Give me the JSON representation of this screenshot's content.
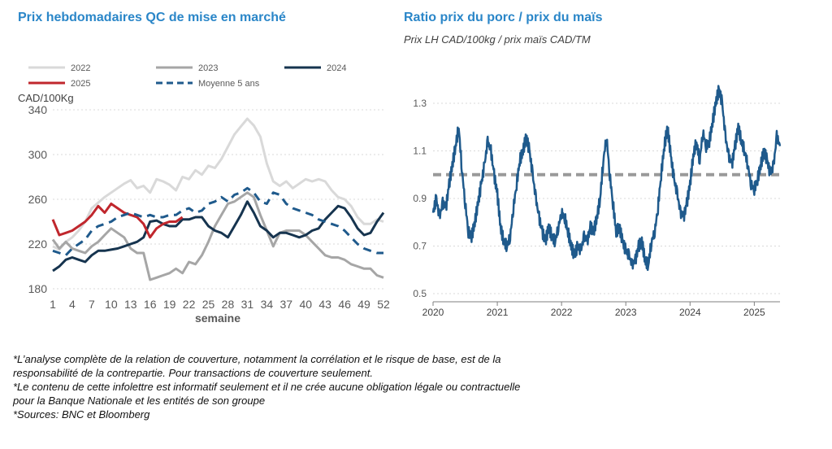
{
  "left_title": "Prix hebdomadaires QC de mise en marché",
  "right_title": "Ratio prix du porc / prix du maïs",
  "right_subtitle": "Prix LH CAD/100kg / prix maïs CAD/TM",
  "footnotes": [
    "*L’analyse complète de la relation de couverture, notamment la corrélation et le risque de base, est de la",
    "responsabilité de la contrepartie. Pour transactions de couverture seulement.",
    "*Le contenu de cette infolettre est informatif seulement et il ne crée aucune obligation légale ou contractuelle",
    "pour la Banque Nationale et les entités de son groupe",
    "*Sources: BNC et Bloomberg"
  ],
  "chart_data": [
    {
      "type": "line",
      "ylabel": "CAD/100Kg",
      "xlabel": "semaine",
      "ylim": [
        180,
        340
      ],
      "xlim": [
        1,
        52
      ],
      "yticks": [
        180,
        220,
        260,
        300,
        340
      ],
      "xticks": [
        1,
        4,
        7,
        10,
        13,
        16,
        19,
        22,
        25,
        28,
        31,
        34,
        37,
        40,
        43,
        46,
        49,
        52
      ],
      "grid": true,
      "legend_position": "top",
      "series": [
        {
          "name": "2022",
          "color": "#d9d9d9",
          "dash": false,
          "width": 3,
          "x": [
            1,
            2,
            3,
            4,
            5,
            6,
            7,
            8,
            9,
            10,
            11,
            12,
            13,
            14,
            15,
            16,
            17,
            18,
            19,
            20,
            21,
            22,
            23,
            24,
            25,
            26,
            27,
            28,
            29,
            30,
            31,
            32,
            33,
            34,
            35,
            36,
            37,
            38,
            39,
            40,
            41,
            42,
            43,
            44,
            45,
            46,
            47,
            48,
            49,
            50,
            51,
            52
          ],
          "y": [
            218,
            215,
            222,
            226,
            232,
            240,
            252,
            257,
            262,
            266,
            270,
            274,
            277,
            270,
            272,
            266,
            278,
            276,
            273,
            268,
            280,
            278,
            286,
            282,
            290,
            288,
            296,
            307,
            318,
            325,
            332,
            326,
            316,
            292,
            276,
            272,
            276,
            270,
            274,
            278,
            276,
            278,
            276,
            268,
            262,
            260,
            254,
            244,
            238,
            238,
            242,
            240
          ]
        },
        {
          "name": "2023",
          "color": "#a6a6a6",
          "dash": false,
          "width": 3,
          "x": [
            1,
            2,
            3,
            4,
            5,
            6,
            7,
            8,
            9,
            10,
            11,
            12,
            13,
            14,
            15,
            16,
            17,
            18,
            19,
            20,
            21,
            22,
            23,
            24,
            25,
            26,
            27,
            28,
            29,
            30,
            31,
            32,
            33,
            34,
            35,
            36,
            37,
            38,
            39,
            40,
            41,
            42,
            43,
            44,
            45,
            46,
            47,
            48,
            49,
            50,
            51,
            52
          ],
          "y": [
            224,
            216,
            222,
            216,
            214,
            212,
            218,
            222,
            228,
            234,
            230,
            226,
            216,
            212,
            212,
            188,
            190,
            192,
            194,
            198,
            194,
            204,
            202,
            210,
            222,
            236,
            246,
            256,
            258,
            262,
            266,
            262,
            246,
            232,
            218,
            230,
            232,
            232,
            232,
            228,
            222,
            216,
            210,
            208,
            208,
            206,
            202,
            200,
            198,
            198,
            192,
            190
          ]
        },
        {
          "name": "2024",
          "color": "#16344f",
          "dash": false,
          "width": 3,
          "x": [
            1,
            2,
            3,
            4,
            5,
            6,
            7,
            8,
            9,
            10,
            11,
            12,
            13,
            14,
            15,
            16,
            17,
            18,
            19,
            20,
            21,
            22,
            23,
            24,
            25,
            26,
            27,
            28,
            29,
            30,
            31,
            32,
            33,
            34,
            35,
            36,
            37,
            38,
            39,
            40,
            41,
            42,
            43,
            44,
            45,
            46,
            47,
            48,
            49,
            50,
            51,
            52
          ],
          "y": [
            196,
            200,
            206,
            208,
            206,
            204,
            210,
            214,
            214,
            215,
            216,
            218,
            220,
            222,
            226,
            240,
            241,
            238,
            236,
            236,
            242,
            242,
            244,
            244,
            236,
            232,
            230,
            226,
            236,
            246,
            258,
            248,
            236,
            232,
            226,
            230,
            230,
            228,
            226,
            228,
            232,
            234,
            242,
            248,
            254,
            252,
            244,
            234,
            228,
            230,
            240,
            248
          ]
        },
        {
          "name": "2025",
          "color": "#c0272d",
          "dash": false,
          "width": 3,
          "x": [
            1,
            2,
            3,
            4,
            5,
            6,
            7,
            8,
            9,
            10,
            11,
            12,
            13,
            14,
            15,
            16,
            17,
            18,
            19,
            20,
            21
          ],
          "y": [
            242,
            228,
            230,
            232,
            236,
            240,
            246,
            254,
            248,
            256,
            252,
            248,
            246,
            244,
            238,
            226,
            234,
            238,
            240,
            240,
            244
          ]
        },
        {
          "name": "Moyenne 5 ans",
          "color": "#1f5a8c",
          "dash": true,
          "width": 3,
          "x": [
            1,
            2,
            3,
            4,
            5,
            6,
            7,
            8,
            9,
            10,
            11,
            12,
            13,
            14,
            15,
            16,
            17,
            18,
            19,
            20,
            21,
            22,
            23,
            24,
            25,
            26,
            27,
            28,
            29,
            30,
            31,
            32,
            33,
            34,
            35,
            36,
            37,
            38,
            39,
            40,
            41,
            42,
            43,
            44,
            45,
            46,
            47,
            48,
            49,
            50,
            51,
            52
          ],
          "y": [
            214,
            212,
            210,
            216,
            220,
            224,
            232,
            236,
            238,
            240,
            244,
            246,
            248,
            246,
            244,
            246,
            244,
            244,
            246,
            246,
            250,
            252,
            248,
            250,
            256,
            258,
            262,
            258,
            264,
            266,
            270,
            266,
            258,
            256,
            266,
            264,
            256,
            252,
            250,
            248,
            246,
            242,
            240,
            238,
            236,
            232,
            226,
            220,
            216,
            214,
            212,
            212
          ]
        }
      ]
    },
    {
      "type": "line",
      "title": "Ratio prix du porc / prix du maïs",
      "ylim": [
        0.5,
        1.3
      ],
      "yticks": [
        0.5,
        0.7,
        0.9,
        1.1,
        1.3
      ],
      "xticks": [
        "2020",
        "2021",
        "2022",
        "2023",
        "2024",
        "2025"
      ],
      "xlim": [
        2020.0,
        2025.4
      ],
      "grid": true,
      "reference_line": {
        "y": 1.0,
        "color": "#999999",
        "dash": true
      },
      "series": [
        {
          "name": "",
          "color": "#1f5a8c",
          "x": [
            2020.0,
            2020.05,
            2020.1,
            2020.15,
            2020.2,
            2020.25,
            2020.3,
            2020.35,
            2020.4,
            2020.45,
            2020.5,
            2020.55,
            2020.6,
            2020.65,
            2020.7,
            2020.75,
            2020.8,
            2020.85,
            2020.9,
            2020.95,
            2021.0,
            2021.05,
            2021.1,
            2021.15,
            2021.2,
            2021.25,
            2021.3,
            2021.35,
            2021.4,
            2021.45,
            2021.5,
            2021.55,
            2021.6,
            2021.65,
            2021.7,
            2021.75,
            2021.8,
            2021.85,
            2021.9,
            2021.95,
            2022.0,
            2022.05,
            2022.1,
            2022.15,
            2022.2,
            2022.25,
            2022.3,
            2022.35,
            2022.4,
            2022.45,
            2022.5,
            2022.55,
            2022.6,
            2022.65,
            2022.7,
            2022.75,
            2022.8,
            2022.85,
            2022.9,
            2022.95,
            2023.0,
            2023.05,
            2023.1,
            2023.15,
            2023.2,
            2023.25,
            2023.3,
            2023.35,
            2023.4,
            2023.45,
            2023.5,
            2023.55,
            2023.6,
            2023.65,
            2023.7,
            2023.75,
            2023.8,
            2023.85,
            2023.9,
            2023.95,
            2024.0,
            2024.05,
            2024.1,
            2024.15,
            2024.2,
            2024.25,
            2024.3,
            2024.35,
            2024.4,
            2024.45,
            2024.5,
            2024.55,
            2024.6,
            2024.65,
            2024.7,
            2024.75,
            2024.8,
            2024.85,
            2024.9,
            2024.95,
            2025.0,
            2025.05,
            2025.1,
            2025.15,
            2025.2,
            2025.25,
            2025.3,
            2025.35,
            2025.4
          ],
          "y": [
            0.84,
            0.9,
            0.82,
            0.88,
            0.86,
            0.96,
            1.04,
            1.12,
            1.2,
            1.02,
            0.88,
            0.76,
            0.74,
            0.8,
            0.88,
            0.96,
            1.04,
            1.14,
            1.1,
            1.0,
            0.92,
            0.78,
            0.72,
            0.7,
            0.74,
            0.86,
            0.96,
            1.06,
            1.1,
            1.16,
            1.1,
            1.0,
            0.9,
            0.82,
            0.76,
            0.72,
            0.78,
            0.74,
            0.72,
            0.78,
            0.84,
            0.82,
            0.76,
            0.7,
            0.66,
            0.7,
            0.68,
            0.74,
            0.72,
            0.78,
            0.76,
            0.82,
            0.9,
            1.06,
            1.16,
            1.0,
            0.88,
            0.76,
            0.78,
            0.72,
            0.68,
            0.66,
            0.62,
            0.64,
            0.7,
            0.72,
            0.64,
            0.62,
            0.72,
            0.76,
            0.86,
            1.0,
            1.12,
            1.2,
            1.08,
            0.98,
            0.92,
            0.84,
            0.82,
            0.88,
            0.96,
            1.08,
            1.14,
            1.06,
            1.18,
            1.12,
            1.14,
            1.22,
            1.3,
            1.36,
            1.3,
            1.16,
            1.08,
            1.04,
            1.12,
            1.2,
            1.14,
            1.1,
            1.04,
            0.96,
            0.94,
            0.98,
            1.04,
            1.1,
            1.06,
            1.0,
            1.04,
            1.16,
            1.12
          ]
        }
      ]
    }
  ]
}
